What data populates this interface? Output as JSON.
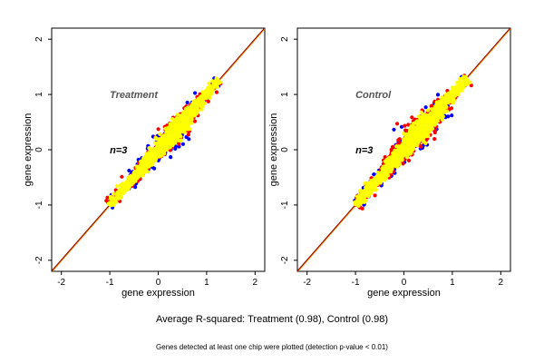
{
  "chart_data": [
    {
      "type": "scatter",
      "panel": "treatment",
      "xlabel": "gene expression",
      "ylabel": "gene expression",
      "xlim": [
        -2.2,
        2.2
      ],
      "ylim": [
        -2.2,
        2.2
      ],
      "xticks": [
        "-2",
        "-1",
        "0",
        "1",
        "2"
      ],
      "yticks": [
        "-2",
        "-1",
        "0",
        "1",
        "2"
      ],
      "annotations": [
        {
          "text": "Treatment",
          "x": -1.0,
          "y": 1.0,
          "color": "#555555"
        },
        {
          "text": "n=3",
          "x": -1.0,
          "y": 0.0,
          "color": "#000000"
        }
      ],
      "diagonal": {
        "from": [
          -2.2,
          -2.2
        ],
        "to": [
          2.2,
          2.2
        ],
        "colors": [
          "#8b0000",
          "#ff8c00"
        ]
      },
      "series": [
        {
          "color": "#0000ff",
          "spread": 0.09,
          "n": 220,
          "range": [
            -1.0,
            1.25
          ]
        },
        {
          "color": "#ff0000",
          "spread": 0.075,
          "n": 380,
          "range": [
            -1.0,
            1.25
          ]
        },
        {
          "color": "#ffff00",
          "spread": 0.055,
          "n": 1600,
          "range": [
            -1.0,
            1.25
          ]
        }
      ]
    },
    {
      "type": "scatter",
      "panel": "control",
      "xlabel": "gene expression",
      "ylabel": "gene expression",
      "xlim": [
        -2.2,
        2.2
      ],
      "ylim": [
        -2.2,
        2.2
      ],
      "xticks": [
        "-2",
        "-1",
        "0",
        "1",
        "2"
      ],
      "yticks": [
        "-2",
        "-1",
        "0",
        "1",
        "2"
      ],
      "annotations": [
        {
          "text": "Control",
          "x": -1.0,
          "y": 1.0,
          "color": "#555555"
        },
        {
          "text": "n=3",
          "x": -1.0,
          "y": 0.0,
          "color": "#000000"
        }
      ],
      "diagonal": {
        "from": [
          -2.2,
          -2.2
        ],
        "to": [
          2.2,
          2.2
        ],
        "colors": [
          "#8b0000",
          "#ff8c00"
        ]
      },
      "series": [
        {
          "color": "#0000ff",
          "spread": 0.11,
          "n": 240,
          "range": [
            -1.0,
            1.3
          ]
        },
        {
          "color": "#ff0000",
          "spread": 0.095,
          "n": 420,
          "range": [
            -1.0,
            1.3
          ]
        },
        {
          "color": "#ffff00",
          "spread": 0.06,
          "n": 1600,
          "range": [
            -1.0,
            1.3
          ]
        }
      ]
    }
  ],
  "caption": {
    "main": "Average R-squared: Treatment (0.98), Control (0.98)",
    "sub": "Genes detected at least one chip were plotted (detection p-value < 0.01)"
  }
}
